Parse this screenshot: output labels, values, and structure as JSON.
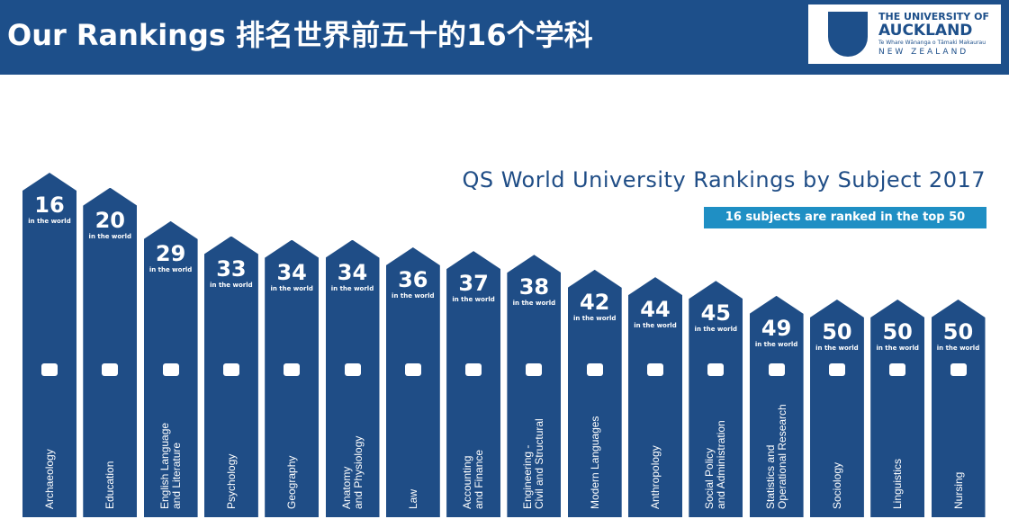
{
  "header": {
    "title": "Our Rankings 排名世界前五十的16个学科",
    "logo": {
      "line1": "THE UNIVERSITY OF",
      "line2": "AUCKLAND",
      "line3": "Te Whare Wānanga o Tāmaki Makaurau",
      "line4": "NEW ZEALAND"
    }
  },
  "chart_data": {
    "type": "rank-bars",
    "title": "QS World University Rankings by Subject 2017",
    "subtitle": "16 subjects are ranked in the top 50",
    "unit_label": "in the world",
    "color": "#1f4d86",
    "categories": [
      "Archaeology",
      "Education",
      "English Language\nand Literature",
      "Psychology",
      "Geography",
      "Anatomy\nand Physiology",
      "Law",
      "Accounting\nand Finance",
      "Engineering -\nCivil and Structural",
      "Modern Languages",
      "Anthropology",
      "Social Policy\nand Administration",
      "Statistics and\nOperational Research",
      "Sociology",
      "Linguistics",
      "Nursing"
    ],
    "values": [
      16,
      20,
      29,
      33,
      34,
      34,
      36,
      37,
      38,
      42,
      44,
      45,
      49,
      50,
      50,
      50
    ]
  }
}
